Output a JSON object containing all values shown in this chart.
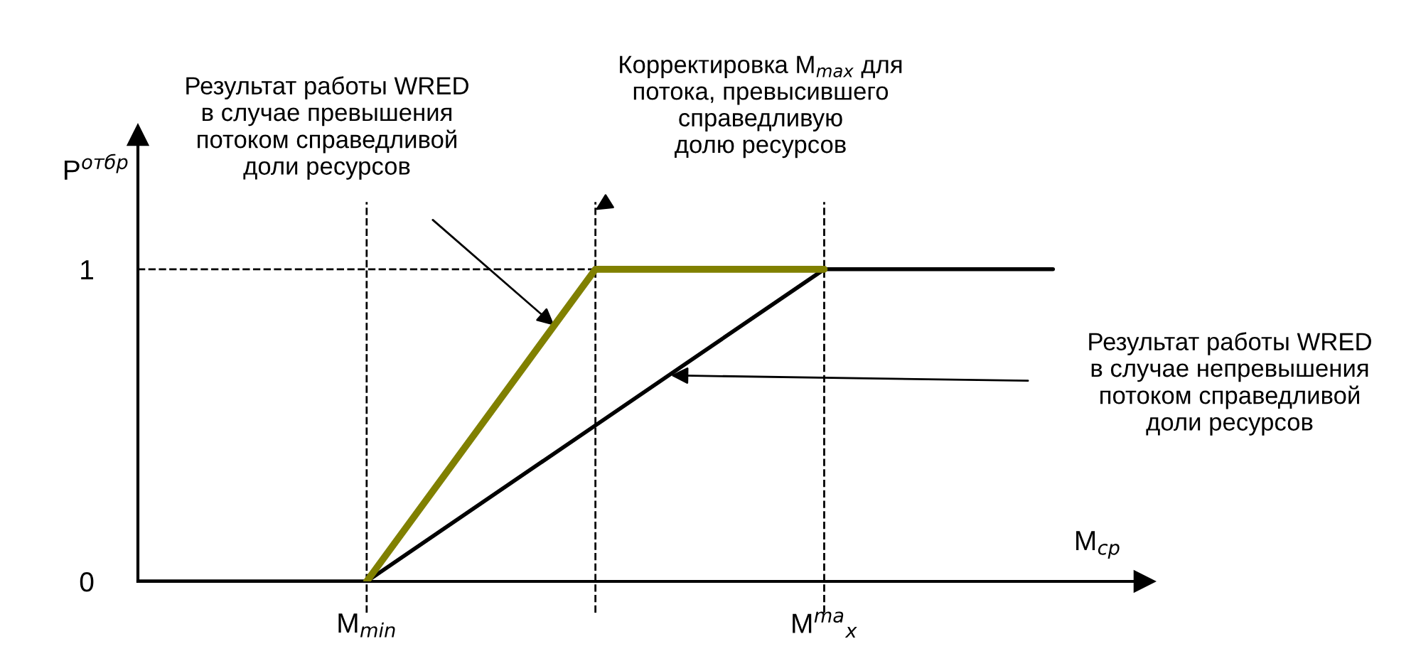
{
  "chart_data": {
    "type": "line",
    "xlabel": "M$_{ср}$",
    "ylabel": "P$^{отбр}$",
    "categories": [
      null,
      "M$_{min}$",
      null,
      "M$^{ma}$$_{x}$",
      null
    ],
    "ylim": [
      0,
      1.43
    ],
    "yticks": [
      0,
      1
    ],
    "grid": "x",
    "legend": false,
    "marker": "none",
    "line_style": "solid",
    "series": [
      {
        "color": "#000000",
        "values": [
          0,
          0,
          0.5,
          1,
          1
        ]
      },
      {
        "color": "#808000",
        "values": [
          null,
          0,
          1,
          1,
          null
        ]
      }
    ],
    "ref_lines": [
      {
        "axis": "y",
        "value": 1,
        "color": "#000000",
        "line_style": "dashed"
      }
    ],
    "annotations": [
      "Результат работы WRED\nв случае превышения\nпотоком справедливой\nдоли ресурсов",
      "Корректировка M$_{max}$ для\nпотока, превысившего\nсправедливую\nдолю ресурсов",
      "Результат работы WRED\nв случае непревышения\nпотоком справедливой\nдоли ресурсов"
    ]
  }
}
